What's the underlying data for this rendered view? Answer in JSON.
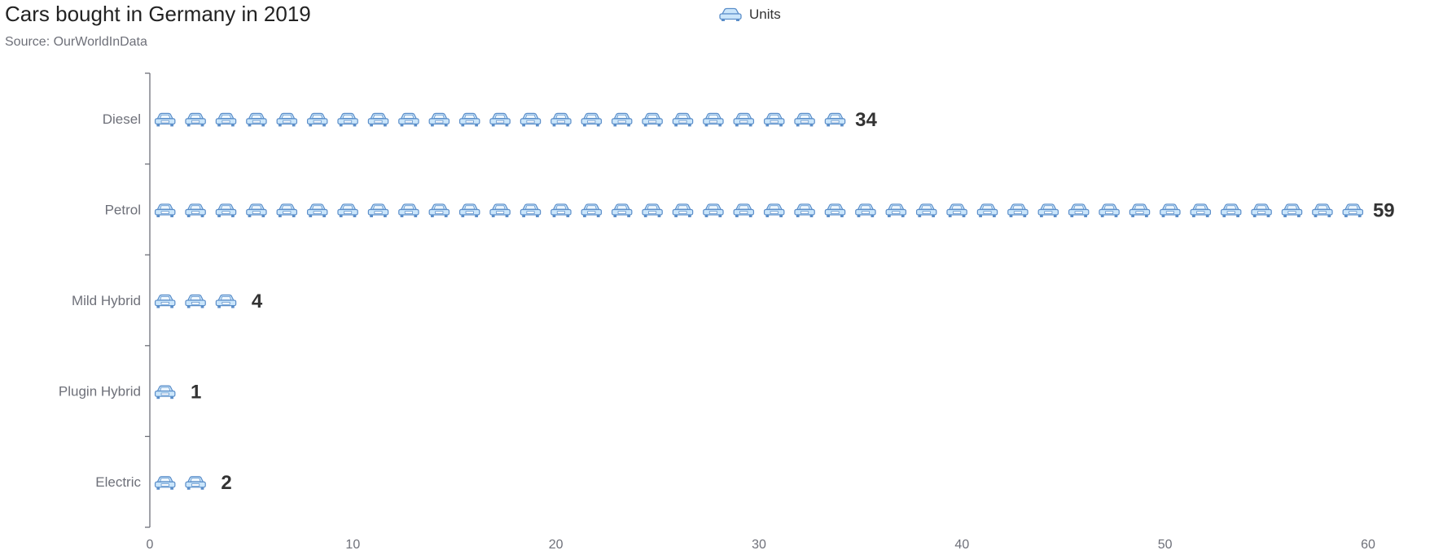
{
  "chart_data": {
    "type": "bar",
    "title": "Cars bought in Germany in 2019",
    "subtitle": "Source: OurWorldInData",
    "legend": {
      "position": "top-center",
      "entries": [
        {
          "name": "Units",
          "icon": "car-icon"
        }
      ]
    },
    "orientation": "horizontal",
    "mark_style": "pictorial-repeated-car-icons",
    "categories": [
      "Diesel",
      "Petrol",
      "Mild Hybrid",
      "Plugin Hybrid",
      "Electric"
    ],
    "series": [
      {
        "name": "Units",
        "values": [
          34,
          59,
          4,
          1,
          2
        ]
      }
    ],
    "xlim": [
      0,
      60
    ],
    "x_ticks": [
      0,
      10,
      20,
      30,
      40,
      50,
      60
    ],
    "grid": false,
    "colors": {
      "icon_fill": "#cbe6fb",
      "icon_stroke": "#5b8ec9",
      "icon_window": "#eef7fe",
      "axis": "#6e7079",
      "label": "#6e7079",
      "value_label": "#333333"
    }
  }
}
